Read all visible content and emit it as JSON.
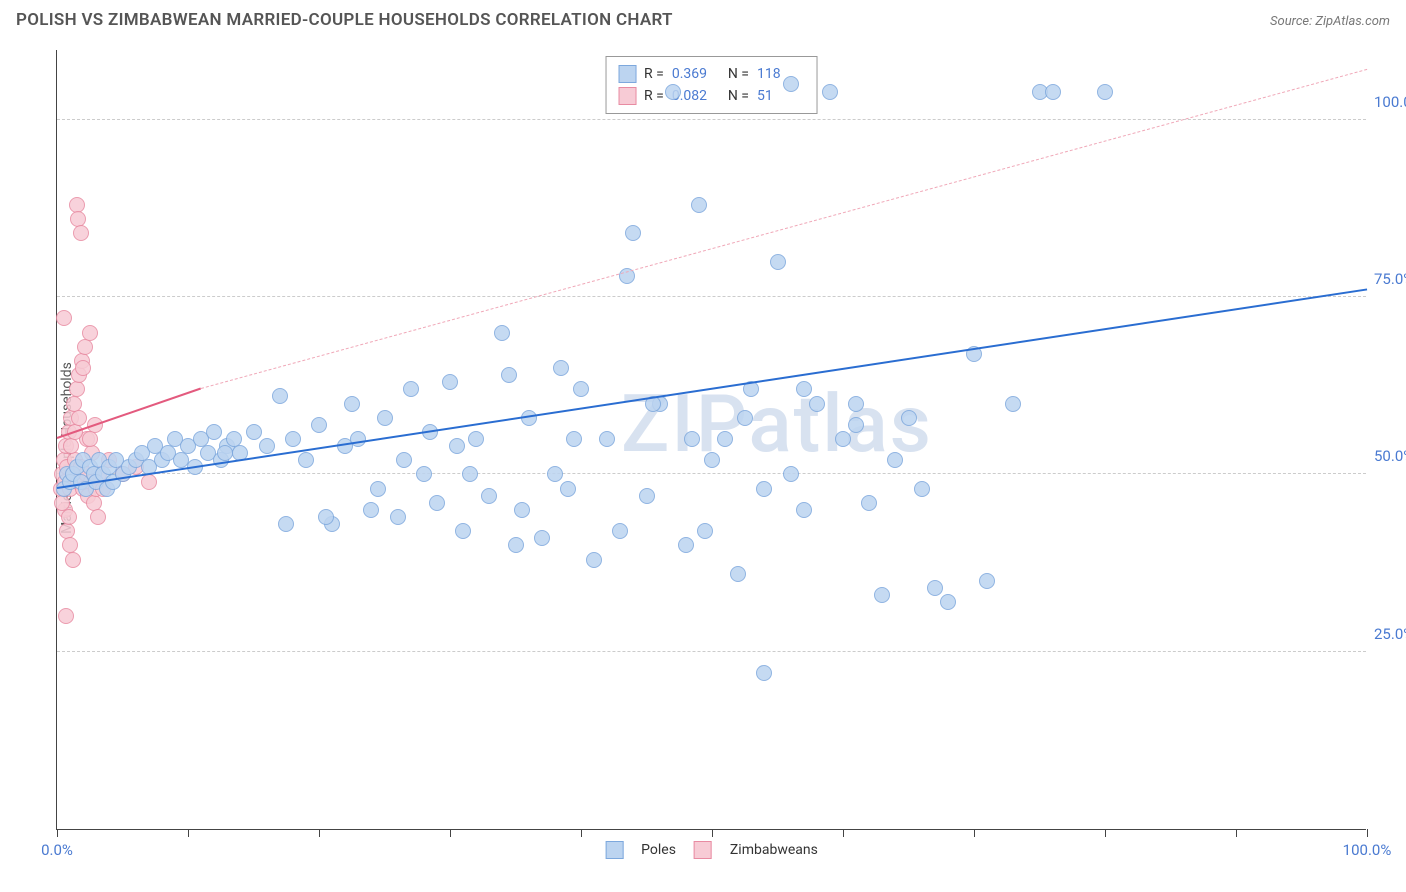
{
  "title": "POLISH VS ZIMBABWEAN MARRIED-COUPLE HOUSEHOLDS CORRELATION CHART",
  "source": "Source: ZipAtlas.com",
  "ylabel": "Married-couple Households",
  "watermark": "ZIPatlas",
  "chart": {
    "type": "scatter",
    "xlim": [
      0,
      100
    ],
    "ylim": [
      0,
      110
    ],
    "xticks": [
      0,
      10,
      20,
      30,
      40,
      50,
      60,
      70,
      80,
      90,
      100
    ],
    "xtick_labels": {
      "0": "0.0%",
      "100": "100.0%"
    },
    "yticks": [
      25,
      50,
      75,
      100
    ],
    "ytick_labels": {
      "25": "25.0%",
      "50": "50.0%",
      "75": "75.0%",
      "100": "100.0%"
    },
    "background_color": "#ffffff",
    "grid_color": "#cccccc",
    "marker_radius": 8,
    "marker_stroke_width": 1.5,
    "series": [
      {
        "name": "Poles",
        "fill": "#bcd4f0",
        "stroke": "#7da8dd",
        "r_value": "0.369",
        "n_value": "118",
        "trend": {
          "x0": 0,
          "y0": 48,
          "x1": 100,
          "y1": 76,
          "width": 2.5,
          "color": "#2a6dd1",
          "dash": "solid"
        },
        "points": [
          [
            0.5,
            48
          ],
          [
            0.8,
            50
          ],
          [
            1.0,
            49
          ],
          [
            1.2,
            50
          ],
          [
            1.5,
            51
          ],
          [
            1.8,
            49
          ],
          [
            2.0,
            52
          ],
          [
            2.2,
            48
          ],
          [
            2.5,
            51
          ],
          [
            2.8,
            50
          ],
          [
            3.0,
            49
          ],
          [
            3.2,
            52
          ],
          [
            3.5,
            50
          ],
          [
            3.8,
            48
          ],
          [
            4.0,
            51
          ],
          [
            4.3,
            49
          ],
          [
            4.5,
            52
          ],
          [
            5.0,
            50
          ],
          [
            5.5,
            51
          ],
          [
            6.0,
            52
          ],
          [
            6.5,
            53
          ],
          [
            7.0,
            51
          ],
          [
            7.5,
            54
          ],
          [
            8.0,
            52
          ],
          [
            8.5,
            53
          ],
          [
            9.0,
            55
          ],
          [
            9.5,
            52
          ],
          [
            10.0,
            54
          ],
          [
            10.5,
            51
          ],
          [
            11.0,
            55
          ],
          [
            11.5,
            53
          ],
          [
            12.0,
            56
          ],
          [
            12.5,
            52
          ],
          [
            13.0,
            54
          ],
          [
            13.5,
            55
          ],
          [
            14.0,
            53
          ],
          [
            15.0,
            56
          ],
          [
            16.0,
            54
          ],
          [
            17.0,
            61
          ],
          [
            18.0,
            55
          ],
          [
            19.0,
            52
          ],
          [
            20.0,
            57
          ],
          [
            21.0,
            43
          ],
          [
            22.0,
            54
          ],
          [
            23.0,
            55
          ],
          [
            24.0,
            45
          ],
          [
            25.0,
            58
          ],
          [
            26.0,
            44
          ],
          [
            27.0,
            62
          ],
          [
            28.0,
            50
          ],
          [
            29.0,
            46
          ],
          [
            30.0,
            63
          ],
          [
            31.0,
            42
          ],
          [
            32.0,
            55
          ],
          [
            33.0,
            47
          ],
          [
            34.0,
            70
          ],
          [
            35.0,
            40
          ],
          [
            36.0,
            58
          ],
          [
            37.0,
            41
          ],
          [
            38.0,
            50
          ],
          [
            39.0,
            48
          ],
          [
            40.0,
            62
          ],
          [
            41.0,
            38
          ],
          [
            42.0,
            55
          ],
          [
            43.0,
            42
          ],
          [
            44.0,
            84
          ],
          [
            45.0,
            47
          ],
          [
            46.0,
            60
          ],
          [
            47.0,
            104
          ],
          [
            48.0,
            40
          ],
          [
            49.0,
            88
          ],
          [
            50.0,
            52
          ],
          [
            51.0,
            55
          ],
          [
            52.0,
            36
          ],
          [
            53.0,
            62
          ],
          [
            54.0,
            48
          ],
          [
            55.0,
            80
          ],
          [
            56.0,
            50
          ],
          [
            57.0,
            45
          ],
          [
            58.0,
            60
          ],
          [
            59.0,
            104
          ],
          [
            60.0,
            55
          ],
          [
            61.0,
            60
          ],
          [
            62.0,
            46
          ],
          [
            63.0,
            33
          ],
          [
            64.0,
            52
          ],
          [
            65.0,
            58
          ],
          [
            66.0,
            48
          ],
          [
            67.0,
            34
          ],
          [
            68.0,
            32
          ],
          [
            70.0,
            67
          ],
          [
            71.0,
            35
          ],
          [
            73.0,
            60
          ],
          [
            75.0,
            104
          ],
          [
            76.0,
            104
          ],
          [
            80.0,
            104
          ],
          [
            54.0,
            22
          ],
          [
            56.0,
            105
          ],
          [
            49.5,
            42
          ],
          [
            45.5,
            60
          ],
          [
            30.5,
            54
          ],
          [
            34.5,
            64
          ],
          [
            20.5,
            44
          ],
          [
            17.5,
            43
          ],
          [
            12.8,
            53
          ],
          [
            38.5,
            65
          ],
          [
            43.5,
            78
          ],
          [
            26.5,
            52
          ],
          [
            57.0,
            62
          ],
          [
            61.0,
            57
          ],
          [
            35.5,
            45
          ],
          [
            39.5,
            55
          ],
          [
            22.5,
            60
          ],
          [
            48.5,
            55
          ],
          [
            52.5,
            58
          ],
          [
            24.5,
            48
          ],
          [
            28.5,
            56
          ],
          [
            31.5,
            50
          ]
        ]
      },
      {
        "name": "Zimbabweans",
        "fill": "#f7cbd5",
        "stroke": "#e88ba2",
        "r_value": "0.082",
        "n_value": "51",
        "trend_solid": {
          "x0": 0,
          "y0": 55,
          "x1": 11,
          "y1": 62,
          "width": 2.5,
          "color": "#e35a7e",
          "dash": "solid"
        },
        "trend_dash": {
          "x0": 11,
          "y0": 62,
          "x1": 100,
          "y1": 107,
          "width": 1,
          "color": "#f0a8b8",
          "dash": "dashed"
        },
        "points": [
          [
            0.3,
            48
          ],
          [
            0.4,
            50
          ],
          [
            0.5,
            52
          ],
          [
            0.6,
            49
          ],
          [
            0.7,
            54
          ],
          [
            0.8,
            51
          ],
          [
            0.9,
            56
          ],
          [
            1.0,
            48
          ],
          [
            1.1,
            58
          ],
          [
            1.2,
            50
          ],
          [
            1.3,
            60
          ],
          [
            1.4,
            52
          ],
          [
            1.5,
            62
          ],
          [
            1.6,
            49
          ],
          [
            1.7,
            64
          ],
          [
            1.8,
            51
          ],
          [
            1.9,
            66
          ],
          [
            2.0,
            48
          ],
          [
            2.1,
            68
          ],
          [
            2.2,
            50
          ],
          [
            2.3,
            55
          ],
          [
            2.4,
            47
          ],
          [
            2.5,
            70
          ],
          [
            2.6,
            49
          ],
          [
            2.7,
            53
          ],
          [
            2.8,
            46
          ],
          [
            2.9,
            57
          ],
          [
            3.0,
            48
          ],
          [
            3.1,
            44
          ],
          [
            3.2,
            50
          ],
          [
            0.5,
            72
          ],
          [
            0.6,
            45
          ],
          [
            0.8,
            42
          ],
          [
            1.0,
            40
          ],
          [
            1.2,
            38
          ],
          [
            1.5,
            88
          ],
          [
            1.6,
            86
          ],
          [
            1.8,
            84
          ],
          [
            0.7,
            30
          ],
          [
            2.0,
            65
          ],
          [
            2.5,
            55
          ],
          [
            3.5,
            48
          ],
          [
            4.0,
            52
          ],
          [
            5.0,
            50
          ],
          [
            6.0,
            51
          ],
          [
            7.0,
            49
          ],
          [
            0.4,
            46
          ],
          [
            0.9,
            44
          ],
          [
            1.1,
            54
          ],
          [
            1.4,
            56
          ],
          [
            1.7,
            58
          ]
        ]
      }
    ]
  },
  "legend_top": {
    "rows": [
      {
        "swatch_fill": "#bcd4f0",
        "swatch_stroke": "#7da8dd",
        "r_label": "R =",
        "r": "0.369",
        "n_label": "N =",
        "n": "118"
      },
      {
        "swatch_fill": "#f7cbd5",
        "swatch_stroke": "#e88ba2",
        "r_label": "R =",
        "r": "0.082",
        "n_label": "N =",
        "n": "51"
      }
    ]
  },
  "legend_bottom": {
    "items": [
      {
        "swatch_fill": "#bcd4f0",
        "swatch_stroke": "#7da8dd",
        "label": "Poles"
      },
      {
        "swatch_fill": "#f7cbd5",
        "swatch_stroke": "#e88ba2",
        "label": "Zimbabweans"
      }
    ]
  }
}
